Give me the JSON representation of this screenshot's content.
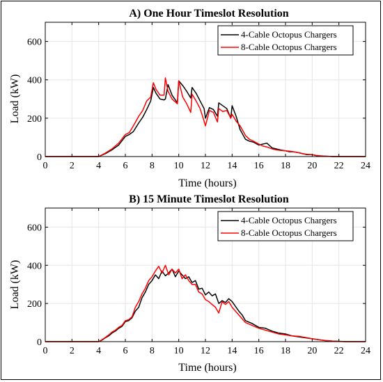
{
  "chart_data": [
    {
      "type": "line",
      "title": "A) One Hour Timeslot Resolution",
      "xlabel": "Time (hours)",
      "ylabel": "Load (kW)",
      "xlim": [
        0,
        24
      ],
      "ylim": [
        0,
        700
      ],
      "xticks": [
        0,
        2,
        4,
        6,
        8,
        10,
        12,
        14,
        16,
        18,
        20,
        22,
        24
      ],
      "yticks": [
        0,
        200,
        400,
        600
      ],
      "grid": true,
      "legend": "top-right",
      "series": [
        {
          "name": "4-Cable Octopus Chargers",
          "color": "#000000",
          "x": [
            0,
            4.0,
            4.5,
            5.0,
            5.5,
            6.0,
            6.3,
            6.6,
            7.0,
            7.3,
            7.6,
            7.9,
            8.1,
            8.3,
            8.6,
            8.9,
            9.0,
            9.2,
            9.5,
            9.9,
            10.0,
            10.3,
            10.6,
            10.9,
            11.0,
            11.3,
            11.6,
            11.9,
            12.0,
            12.3,
            12.6,
            12.9,
            13.0,
            13.3,
            13.6,
            13.9,
            14.0,
            14.3,
            14.6,
            15.0,
            15.3,
            15.6,
            16.0,
            16.3,
            16.6,
            17.0,
            17.3,
            17.6,
            18.0,
            18.3,
            18.6,
            19.0,
            19.3,
            19.6,
            20.0,
            20.3,
            20.6,
            21.0,
            21.3,
            21.6,
            22.0,
            24.0
          ],
          "y": [
            0,
            0,
            15,
            35,
            60,
            105,
            115,
            130,
            175,
            205,
            245,
            290,
            360,
            330,
            300,
            295,
            300,
            375,
            320,
            280,
            395,
            370,
            340,
            305,
            360,
            330,
            290,
            250,
            200,
            255,
            245,
            210,
            280,
            265,
            250,
            200,
            265,
            210,
            140,
            90,
            80,
            75,
            60,
            65,
            70,
            45,
            40,
            35,
            30,
            25,
            25,
            20,
            15,
            10,
            10,
            5,
            3,
            2,
            1,
            0,
            0,
            0
          ]
        },
        {
          "name": "8-Cable Octopus Chargers",
          "color": "#ff0000",
          "x": [
            0,
            4.0,
            4.5,
            5.0,
            5.5,
            6.0,
            6.3,
            6.6,
            7.0,
            7.3,
            7.6,
            7.9,
            8.1,
            8.3,
            8.6,
            8.9,
            9.0,
            9.2,
            9.5,
            9.9,
            10.0,
            10.3,
            10.6,
            10.9,
            11.0,
            11.3,
            11.6,
            11.9,
            12.0,
            12.3,
            12.6,
            12.9,
            13.0,
            13.3,
            13.6,
            13.9,
            14.0,
            14.3,
            14.6,
            15.0,
            15.3,
            15.6,
            16.0,
            16.3,
            16.6,
            17.0,
            17.3,
            17.6,
            18.0,
            18.3,
            18.6,
            19.0,
            19.3,
            19.6,
            20.0,
            20.3,
            20.6,
            21.0,
            21.3,
            21.6,
            22.0,
            24.0
          ],
          "y": [
            0,
            0,
            18,
            40,
            70,
            115,
            125,
            160,
            210,
            240,
            290,
            310,
            385,
            350,
            320,
            320,
            410,
            340,
            300,
            275,
            395,
            310,
            275,
            230,
            325,
            290,
            250,
            185,
            160,
            240,
            230,
            180,
            250,
            235,
            240,
            200,
            220,
            185,
            160,
            110,
            90,
            80,
            65,
            55,
            50,
            40,
            35,
            32,
            30,
            28,
            25,
            20,
            15,
            12,
            10,
            6,
            4,
            2,
            1,
            0,
            0,
            0
          ]
        }
      ]
    },
    {
      "type": "line",
      "title": "B) 15 Minute Timeslot Resolution",
      "xlabel": "Time (hours)",
      "ylabel": "Load (kW)",
      "xlim": [
        0,
        24
      ],
      "ylim": [
        0,
        700
      ],
      "xticks": [
        0,
        2,
        4,
        6,
        8,
        10,
        12,
        14,
        16,
        18,
        20,
        22,
        24
      ],
      "yticks": [
        0,
        200,
        400,
        600
      ],
      "grid": true,
      "legend": "top-right",
      "series": [
        {
          "name": "4-Cable Octopus Chargers",
          "color": "#000000",
          "x": [
            0,
            4.0,
            4.25,
            4.5,
            4.75,
            5.0,
            5.25,
            5.5,
            5.75,
            6.0,
            6.25,
            6.5,
            6.75,
            7.0,
            7.25,
            7.5,
            7.75,
            8.0,
            8.25,
            8.5,
            8.75,
            9.0,
            9.25,
            9.5,
            9.75,
            10.0,
            10.25,
            10.5,
            10.75,
            11.0,
            11.25,
            11.5,
            11.75,
            12.0,
            12.25,
            12.5,
            12.75,
            13.0,
            13.25,
            13.5,
            13.75,
            14.0,
            14.25,
            14.5,
            14.75,
            15.0,
            15.5,
            16.0,
            16.5,
            17.0,
            17.5,
            18.0,
            18.5,
            19.0,
            19.5,
            20.0,
            20.5,
            21.0,
            21.5,
            22.0,
            22.5,
            24.0
          ],
          "y": [
            0,
            0,
            8,
            20,
            30,
            45,
            55,
            70,
            80,
            105,
            110,
            125,
            160,
            180,
            230,
            260,
            300,
            320,
            350,
            330,
            370,
            345,
            360,
            380,
            340,
            370,
            350,
            330,
            340,
            310,
            320,
            275,
            280,
            245,
            260,
            240,
            250,
            200,
            215,
            205,
            225,
            210,
            185,
            160,
            140,
            110,
            95,
            75,
            70,
            55,
            45,
            40,
            30,
            25,
            20,
            15,
            10,
            5,
            3,
            2,
            0,
            0
          ]
        },
        {
          "name": "8-Cable Octopus Chargers",
          "color": "#ff0000",
          "x": [
            0,
            4.0,
            4.25,
            4.5,
            4.75,
            5.0,
            5.25,
            5.5,
            5.75,
            6.0,
            6.25,
            6.5,
            6.75,
            7.0,
            7.25,
            7.5,
            7.75,
            8.0,
            8.25,
            8.5,
            8.75,
            9.0,
            9.25,
            9.5,
            9.75,
            10.0,
            10.25,
            10.5,
            10.75,
            11.0,
            11.25,
            11.5,
            11.75,
            12.0,
            12.25,
            12.5,
            12.75,
            13.0,
            13.25,
            13.5,
            13.75,
            14.0,
            14.25,
            14.5,
            14.75,
            15.0,
            15.5,
            16.0,
            16.5,
            17.0,
            17.5,
            18.0,
            18.5,
            19.0,
            19.5,
            20.0,
            20.5,
            21.0,
            21.5,
            22.0,
            22.5,
            24.0
          ],
          "y": [
            0,
            0,
            10,
            22,
            35,
            50,
            60,
            75,
            85,
            110,
            115,
            130,
            180,
            210,
            250,
            280,
            320,
            340,
            370,
            395,
            360,
            400,
            350,
            380,
            360,
            380,
            330,
            350,
            320,
            300,
            300,
            260,
            250,
            220,
            210,
            195,
            180,
            150,
            210,
            195,
            210,
            180,
            160,
            140,
            120,
            100,
            85,
            70,
            60,
            50,
            40,
            35,
            30,
            28,
            22,
            15,
            10,
            6,
            3,
            1,
            0,
            0
          ]
        }
      ]
    }
  ]
}
